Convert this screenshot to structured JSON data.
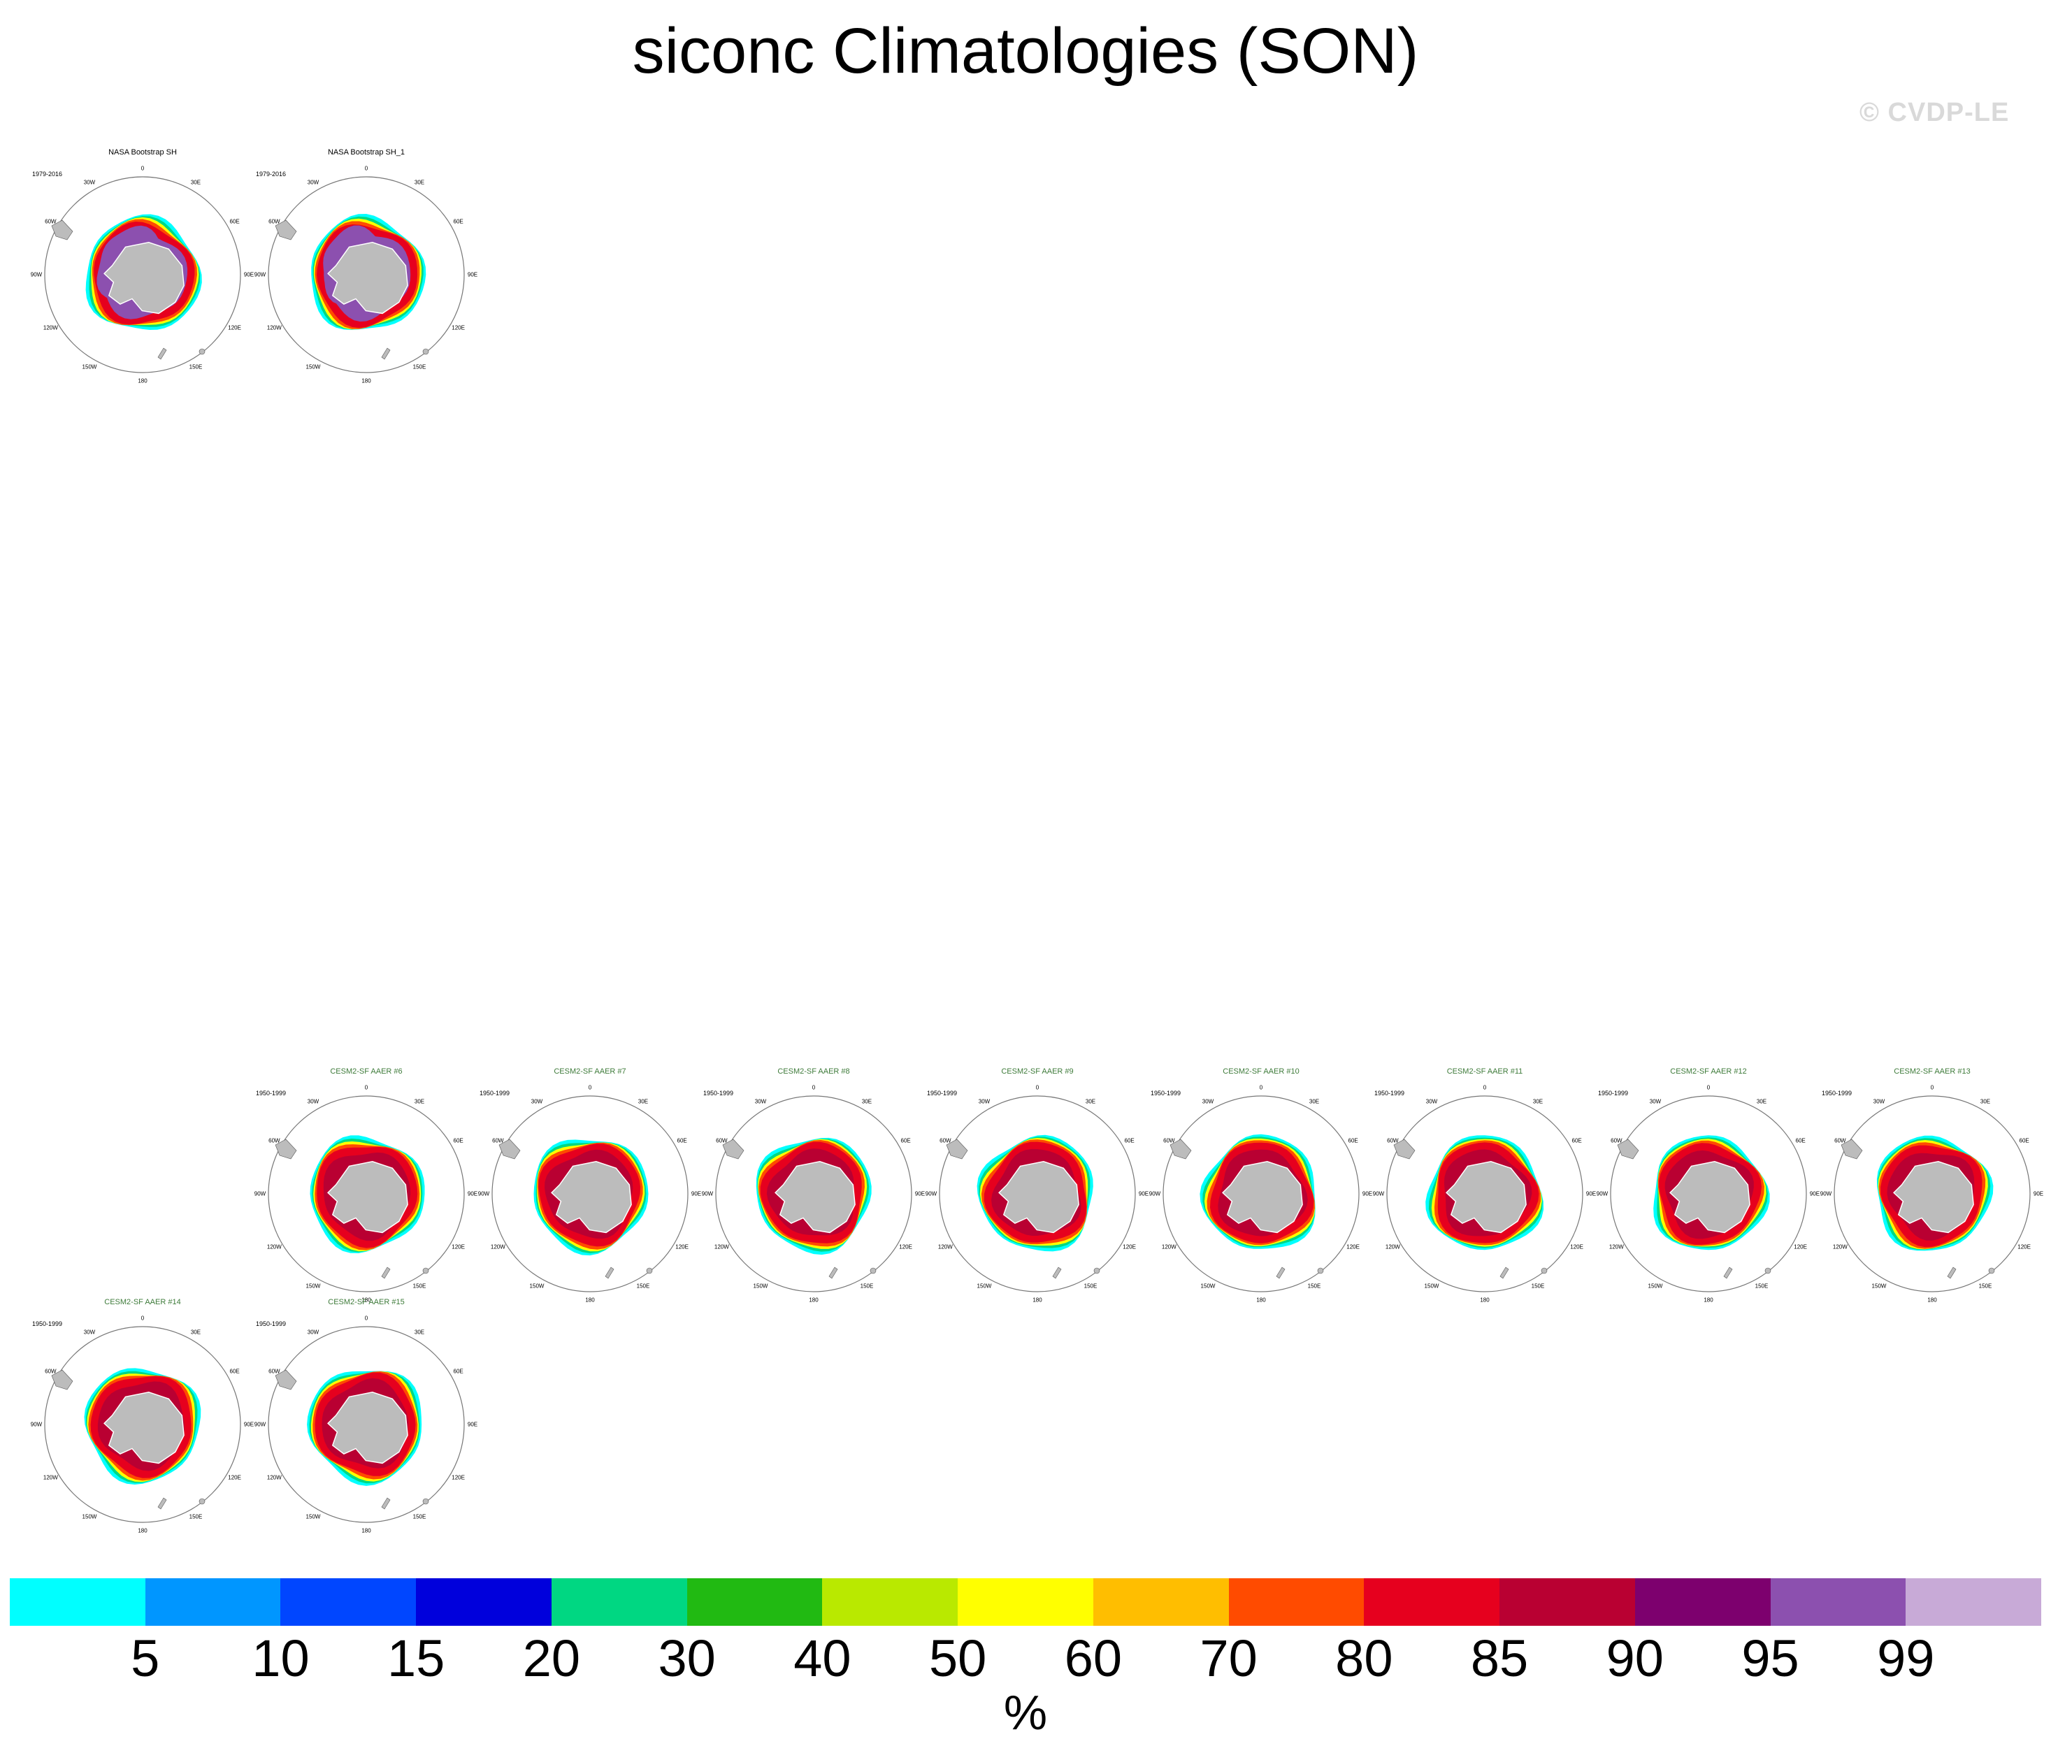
{
  "title": "siconc Climatologies (SON)",
  "watermark": "© CVDP-LE",
  "lon_labels": {
    "n": "0",
    "ne": "30E",
    "e1": "60E",
    "e": "90E",
    "se1": "120E",
    "se": "150E",
    "s": "180",
    "sw": "150W",
    "sw1": "120W",
    "w": "90W",
    "nw1": "60W",
    "nw": "30W"
  },
  "panels": [
    {
      "title": "NASA Bootstrap SH",
      "years": "1979-2016",
      "kind": "obs"
    },
    {
      "title": "NASA Bootstrap SH_1",
      "years": "1979-2016",
      "kind": "obs"
    },
    {
      "title": "CESM2-SF AAER #6",
      "years": "1950-1999",
      "kind": "mod"
    },
    {
      "title": "CESM2-SF AAER #7",
      "years": "1950-1999",
      "kind": "mod"
    },
    {
      "title": "CESM2-SF AAER #8",
      "years": "1950-1999",
      "kind": "mod"
    },
    {
      "title": "CESM2-SF AAER #9",
      "years": "1950-1999",
      "kind": "mod"
    },
    {
      "title": "CESM2-SF AAER #10",
      "years": "1950-1999",
      "kind": "mod"
    },
    {
      "title": "CESM2-SF AAER #11",
      "years": "1950-1999",
      "kind": "mod"
    },
    {
      "title": "CESM2-SF AAER #12",
      "years": "1950-1999",
      "kind": "mod"
    },
    {
      "title": "CESM2-SF AAER #13",
      "years": "1950-1999",
      "kind": "mod"
    },
    {
      "title": "CESM2-SF AAER #14",
      "years": "1950-1999",
      "kind": "mod"
    },
    {
      "title": "CESM2-SF AAER #15",
      "years": "1950-1999",
      "kind": "mod"
    }
  ],
  "colorbar": {
    "colors": [
      "#00ffff",
      "#0096ff",
      "#0046ff",
      "#0000dc",
      "#00d782",
      "#21ba12",
      "#b9e900",
      "#ffff00",
      "#ffbe00",
      "#ff4b00",
      "#e6001e",
      "#b90032",
      "#7d006e",
      "#8c50af",
      "#c8aad7"
    ],
    "labels": [
      "5",
      "10",
      "15",
      "20",
      "30",
      "40",
      "50",
      "60",
      "70",
      "80",
      "85",
      "90",
      "95",
      "99"
    ],
    "units": "%"
  },
  "map_colors": {
    "land": "#bcbcbc",
    "outer": [
      "#00ffff",
      "#0096ff",
      "#00d782",
      "#b9e900",
      "#ffff00",
      "#ffbe00",
      "#ff4b00"
    ],
    "mid": "#e6001e",
    "inner_mod": "#b90032",
    "inner_obs": "#8c50af",
    "pack_obs": "#7d006e"
  }
}
